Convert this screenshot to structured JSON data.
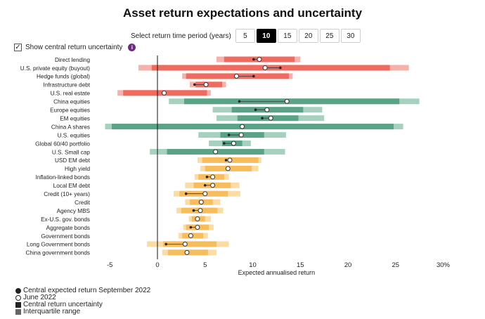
{
  "title": "Asset return expectations and uncertainty",
  "period": {
    "label": "Select return time period (years)",
    "options": [
      "5",
      "10",
      "15",
      "20",
      "25",
      "30"
    ],
    "selected": "10"
  },
  "toggle": {
    "label": "Show central return uncertainty",
    "checked": true,
    "check_mark": "✓",
    "info_glyph": "i"
  },
  "legend": {
    "sept": "Central expected return September 2022",
    "june": "June 2022",
    "central": "Central return uncertainty",
    "iqr": "Interquartile range"
  },
  "colors": {
    "red_dark": "#ef6b60",
    "red_light": "#f6b1aa",
    "green_dark": "#5aa386",
    "green_light": "#a6d1bf",
    "orange_dark": "#f7bd5c",
    "orange_light": "#fbdca5"
  },
  "chart_data": {
    "type": "range-dot",
    "xlabel": "Expected annualised return",
    "xlim": [
      -6,
      31
    ],
    "xticks": [
      -5,
      0,
      5,
      10,
      15,
      20,
      25
    ],
    "xtick_labels": [
      "-5",
      "0",
      "5",
      "10",
      "15",
      "20",
      "25",
      "30%"
    ],
    "last_tick_value": 30,
    "series": [
      {
        "name": "Direct lending",
        "group": "red",
        "outer": [
          6.2,
          15.0
        ],
        "inner": [
          7.0,
          14.4
        ],
        "sept": 10.1,
        "june": 10.7
      },
      {
        "name": "U.S. private equity (buyout)",
        "group": "red",
        "outer": [
          -2.0,
          26.4
        ],
        "inner": [
          -0.6,
          24.4
        ],
        "sept": 12.9,
        "june": 11.3
      },
      {
        "name": "Hedge funds (global)",
        "group": "red",
        "outer": [
          2.6,
          14.2
        ],
        "inner": [
          3.0,
          13.8
        ],
        "sept": 10.1,
        "june": 8.3
      },
      {
        "name": "Infrastructure debt",
        "group": "red",
        "outer": [
          3.4,
          7.2
        ],
        "inner": [
          4.0,
          6.8
        ],
        "sept": 3.9,
        "june": 5.1
      },
      {
        "name": "U.S. real estate",
        "group": "red",
        "outer": [
          -4.2,
          5.6
        ],
        "inner": [
          -3.6,
          5.2
        ],
        "sept": 0.7,
        "june": 0.7
      },
      {
        "name": "China equities",
        "group": "green",
        "outer": [
          1.2,
          27.5
        ],
        "inner": [
          2.8,
          25.4
        ],
        "sept": 8.6,
        "june": 13.6
      },
      {
        "name": "Europe equities",
        "group": "green",
        "outer": [
          5.8,
          17.3
        ],
        "inner": [
          7.8,
          15.3
        ],
        "sept": 10.3,
        "june": 11.5
      },
      {
        "name": "EM equities",
        "group": "green",
        "outer": [
          6.2,
          17.5
        ],
        "inner": [
          8.4,
          14.8
        ],
        "sept": 11.0,
        "june": 11.9
      },
      {
        "name": "China A shares",
        "group": "green",
        "outer": [
          -5.5,
          25.8
        ],
        "inner": [
          -4.8,
          24.8
        ],
        "sept": 8.9,
        "june": 8.9
      },
      {
        "name": "U.S. equities",
        "group": "green",
        "outer": [
          4.3,
          13.5
        ],
        "inner": [
          6.6,
          11.2
        ],
        "sept": 7.5,
        "june": 8.8
      },
      {
        "name": "Global 60/40 portfolio",
        "group": "green",
        "outer": [
          5.4,
          9.8
        ],
        "inner": [
          6.8,
          8.9
        ],
        "sept": 7.0,
        "june": 8.0
      },
      {
        "name": "U.S. Small cap",
        "group": "green",
        "outer": [
          -0.8,
          13.4
        ],
        "inner": [
          1.0,
          11.2
        ],
        "sept": 6.1,
        "june": 6.1
      },
      {
        "name": "USD EM debt",
        "group": "orange",
        "outer": [
          4.2,
          10.9
        ],
        "inner": [
          4.7,
          10.6
        ],
        "sept": 7.2,
        "june": 7.6
      },
      {
        "name": "High yield",
        "group": "orange",
        "outer": [
          4.5,
          10.6
        ],
        "inner": [
          5.0,
          9.9
        ],
        "sept": 7.3,
        "june": 7.4
      },
      {
        "name": "Inflation-linked bonds",
        "group": "orange",
        "outer": [
          3.9,
          7.5
        ],
        "inner": [
          4.3,
          7.0
        ],
        "sept": 5.2,
        "june": 5.8
      },
      {
        "name": "Local EM debt",
        "group": "orange",
        "outer": [
          2.9,
          8.6
        ],
        "inner": [
          3.8,
          7.7
        ],
        "sept": 5.0,
        "june": 5.8
      },
      {
        "name": "Credit (10+ years)",
        "group": "orange",
        "outer": [
          1.7,
          8.7
        ],
        "inner": [
          2.3,
          7.4
        ],
        "sept": 3.0,
        "june": 5.0
      },
      {
        "name": "Credit",
        "group": "orange",
        "outer": [
          2.9,
          6.6
        ],
        "inner": [
          3.4,
          5.8
        ],
        "sept": 4.6,
        "june": 4.6
      },
      {
        "name": "Agency MBS",
        "group": "orange",
        "outer": [
          2.0,
          6.9
        ],
        "inner": [
          2.5,
          6.3
        ],
        "sept": 3.8,
        "june": 4.5
      },
      {
        "name": "Ex-U.S. gov. bonds",
        "group": "orange",
        "outer": [
          3.3,
          5.6
        ],
        "inner": [
          3.6,
          5.0
        ],
        "sept": 4.2,
        "june": 4.2
      },
      {
        "name": "Aggregate bonds",
        "group": "orange",
        "outer": [
          2.7,
          5.9
        ],
        "inner": [
          3.0,
          5.4
        ],
        "sept": 3.5,
        "june": 4.2
      },
      {
        "name": "Government bonds",
        "group": "orange",
        "outer": [
          2.2,
          5.3
        ],
        "inner": [
          2.6,
          4.8
        ],
        "sept": 3.5,
        "june": 3.5
      },
      {
        "name": "Long Government bonds",
        "group": "orange",
        "outer": [
          -1.1,
          7.5
        ],
        "inner": [
          0.6,
          6.2
        ],
        "sept": 0.9,
        "june": 2.9
      },
      {
        "name": "China government bonds",
        "group": "orange",
        "outer": [
          0.5,
          6.2
        ],
        "inner": [
          1.1,
          5.3
        ],
        "sept": 3.1,
        "june": 3.1
      }
    ]
  }
}
